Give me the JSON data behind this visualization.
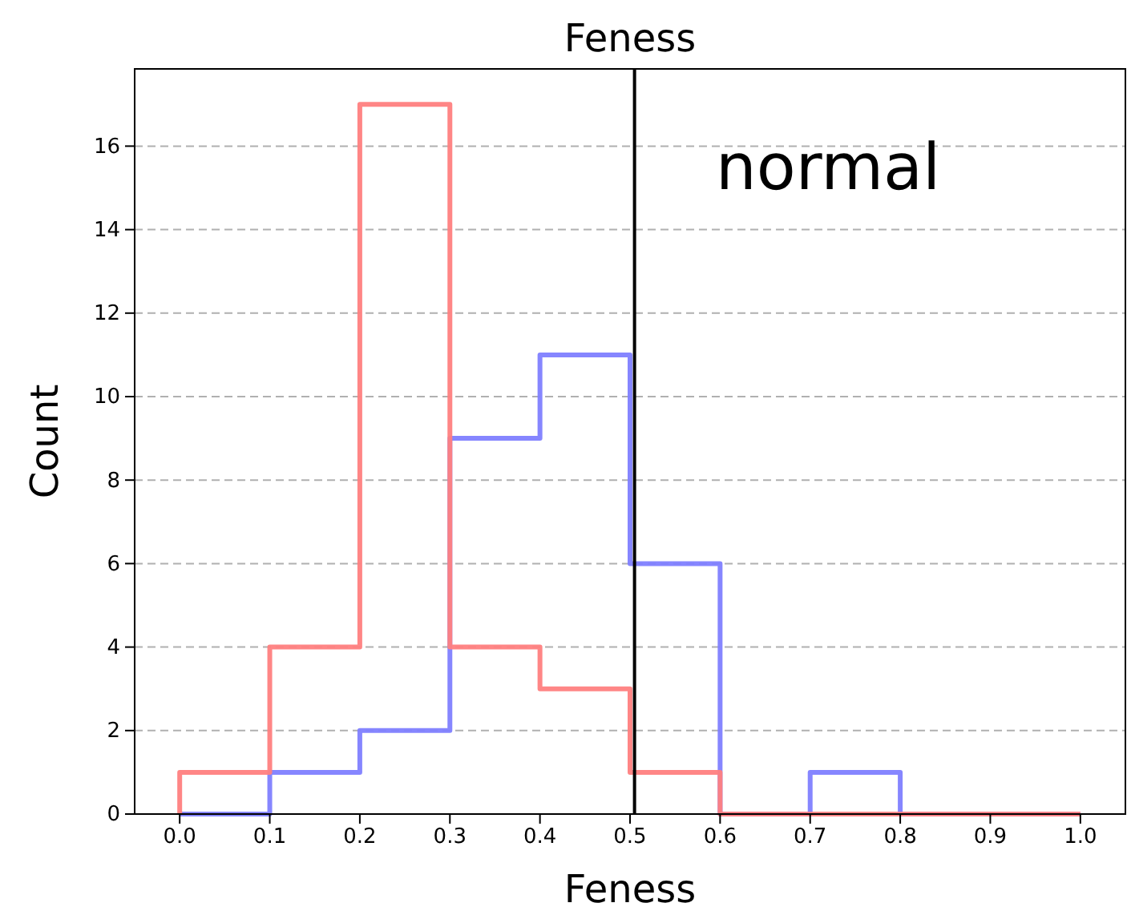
{
  "chart_data": {
    "type": "histogram",
    "title": "Feness",
    "xlabel": "Feness",
    "ylabel": "Count",
    "bins": [
      0,
      0.1,
      0.2,
      0.3,
      0.4,
      0.5,
      0.6,
      0.7,
      0.8,
      0.9,
      1.0
    ],
    "series": [
      {
        "color": "#8080ff",
        "values": [
          0,
          1,
          2,
          9,
          11,
          6,
          0,
          1,
          0,
          0
        ]
      },
      {
        "color": "#ff8080",
        "values": [
          1,
          4,
          17,
          4,
          3,
          1,
          0,
          0,
          0,
          0
        ]
      }
    ],
    "xlim": [
      -0.05,
      1.05
    ],
    "ylim": [
      0,
      17.85
    ],
    "xticks": [
      {
        "value": 0,
        "label": "0.0"
      },
      {
        "value": 0.1,
        "label": "0.1"
      },
      {
        "value": 0.2,
        "label": "0.2"
      },
      {
        "value": 0.3,
        "label": "0.3"
      },
      {
        "value": 0.4,
        "label": "0.4"
      },
      {
        "value": 0.5,
        "label": "0.5"
      },
      {
        "value": 0.6,
        "label": "0.6"
      },
      {
        "value": 0.7,
        "label": "0.7"
      },
      {
        "value": 0.8,
        "label": "0.8"
      },
      {
        "value": 0.9,
        "label": "0.9"
      },
      {
        "value": 1.0,
        "label": "1.0"
      }
    ],
    "yticks": [
      0,
      2,
      4,
      6,
      8,
      10,
      12,
      14,
      16
    ],
    "grid": "y",
    "ref_lines": [
      {
        "axis": "x",
        "value": 0.505,
        "color": "#000000"
      }
    ],
    "annotations": [
      "normal"
    ]
  }
}
